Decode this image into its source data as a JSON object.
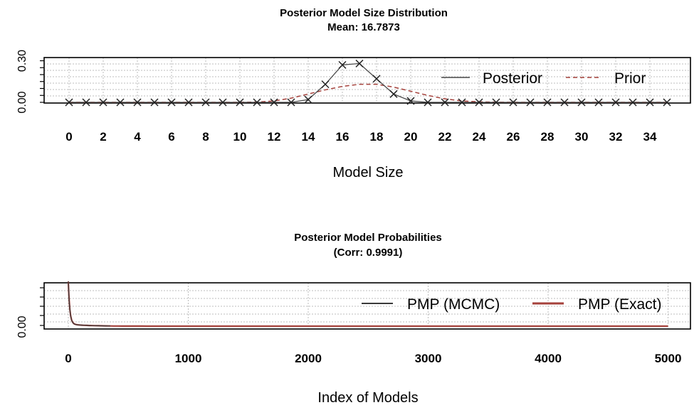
{
  "chart_data": [
    {
      "type": "line",
      "title": "Posterior Model Size Distribution",
      "subtitle": "Mean: 16.7873",
      "xlabel": "Model Size",
      "ylabel": "",
      "xlim": [
        0,
        35
      ],
      "ylim": [
        0,
        0.33
      ],
      "xticks": [
        "0",
        "2",
        "4",
        "6",
        "8",
        "10",
        "12",
        "14",
        "16",
        "18",
        "20",
        "22",
        "24",
        "26",
        "28",
        "30",
        "32",
        "34"
      ],
      "yticks": [
        "0.00",
        "0.30"
      ],
      "grid": true,
      "legend_position": "top-right",
      "x": [
        0,
        1,
        2,
        3,
        4,
        5,
        6,
        7,
        8,
        9,
        10,
        11,
        12,
        13,
        14,
        15,
        16,
        17,
        18,
        19,
        20,
        21,
        22,
        23,
        24,
        25,
        26,
        27,
        28,
        29,
        30,
        31,
        32,
        33,
        34,
        35
      ],
      "series": [
        {
          "name": "Posterior",
          "style": "solid",
          "color": "#4a4a4a",
          "marker": "x",
          "values": [
            0,
            0,
            0,
            0,
            0,
            0,
            0,
            0,
            0,
            0,
            0,
            0,
            0,
            0,
            0.02,
            0.13,
            0.27,
            0.28,
            0.17,
            0.06,
            0.01,
            0,
            0,
            0,
            0,
            0,
            0,
            0,
            0,
            0,
            0,
            0,
            0,
            0,
            0,
            0
          ]
        },
        {
          "name": "Prior",
          "style": "dashed",
          "color": "#a5413b",
          "values": [
            0,
            0,
            0,
            0,
            0,
            0,
            0,
            0,
            0,
            0,
            0,
            0.002,
            0.01,
            0.03,
            0.06,
            0.09,
            0.115,
            0.13,
            0.13,
            0.11,
            0.08,
            0.05,
            0.025,
            0.01,
            0.004,
            0.001,
            0,
            0,
            0,
            0,
            0,
            0,
            0,
            0,
            0,
            0
          ]
        }
      ]
    },
    {
      "type": "line",
      "title": "Posterior Model Probabilities",
      "subtitle": "(Corr: 0.9991)",
      "xlabel": "Index of Models",
      "ylabel": "",
      "xlim": [
        0,
        5000
      ],
      "xticks": [
        "0",
        "1000",
        "2000",
        "3000",
        "4000",
        "5000"
      ],
      "yticks": [
        "0.00"
      ],
      "grid": true,
      "legend_position": "top-right",
      "series": [
        {
          "name": "PMP (MCMC)",
          "style": "solid",
          "color": "#3a3a3a",
          "extent": 350
        },
        {
          "name": "PMP (Exact)",
          "style": "solid",
          "color": "#a5413b",
          "extent": 5000
        }
      ]
    }
  ]
}
